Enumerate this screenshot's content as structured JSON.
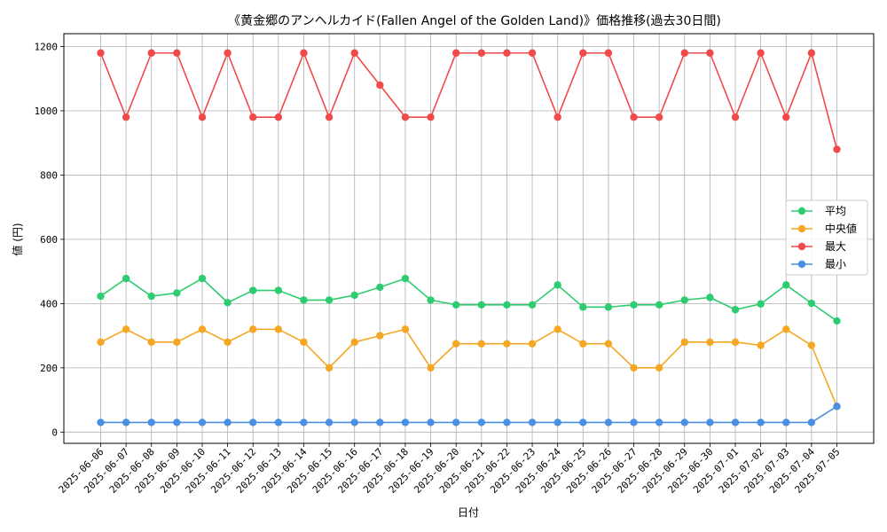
{
  "chart_data": {
    "type": "line",
    "title": "《黄金郷のアンヘルカイド(Fallen Angel of the Golden Land)》価格推移(過去30日間)",
    "xlabel": "日付",
    "ylabel": "値 (円)",
    "ylim": [
      -35,
      1240
    ],
    "yticks": [
      0,
      200,
      400,
      600,
      800,
      1000,
      1200
    ],
    "grid": true,
    "legend_position": "center-right",
    "categories": [
      "2025-06-06",
      "2025-06-07",
      "2025-06-08",
      "2025-06-09",
      "2025-06-10",
      "2025-06-11",
      "2025-06-12",
      "2025-06-13",
      "2025-06-14",
      "2025-06-15",
      "2025-06-16",
      "2025-06-17",
      "2025-06-18",
      "2025-06-19",
      "2025-06-20",
      "2025-06-21",
      "2025-06-22",
      "2025-06-23",
      "2025-06-24",
      "2025-06-25",
      "2025-06-26",
      "2025-06-27",
      "2025-06-28",
      "2025-06-29",
      "2025-06-30",
      "2025-07-01",
      "2025-07-02",
      "2025-07-03",
      "2025-07-04",
      "2025-07-05"
    ],
    "series": [
      {
        "name": "平均",
        "color": "#2ecc71",
        "values": [
          423,
          478,
          423,
          433,
          478,
          403,
          441,
          441,
          411,
          411,
          426,
          451,
          478,
          411,
          396,
          396,
          396,
          396,
          458,
          389,
          389,
          396,
          396,
          411,
          419,
          381,
          399,
          458,
          401,
          346
        ]
      },
      {
        "name": "中央値",
        "color": "#f5a623",
        "values": [
          280,
          320,
          280,
          280,
          320,
          280,
          320,
          320,
          280,
          200,
          280,
          300,
          320,
          200,
          275,
          275,
          275,
          275,
          320,
          275,
          275,
          200,
          200,
          280,
          280,
          280,
          270,
          320,
          270,
          80
        ]
      },
      {
        "name": "最大",
        "color": "#f04a4a",
        "values": [
          1180,
          980,
          1180,
          1180,
          980,
          1180,
          980,
          980,
          1180,
          980,
          1180,
          1080,
          980,
          980,
          1180,
          1180,
          1180,
          1180,
          980,
          1180,
          1180,
          980,
          980,
          1180,
          1180,
          980,
          1180,
          980,
          1180,
          880
        ]
      },
      {
        "name": "最小",
        "color": "#4a90e2",
        "values": [
          30,
          30,
          30,
          30,
          30,
          30,
          30,
          30,
          30,
          30,
          30,
          30,
          30,
          30,
          30,
          30,
          30,
          30,
          30,
          30,
          30,
          30,
          30,
          30,
          30,
          30,
          30,
          30,
          30,
          80
        ]
      }
    ]
  }
}
